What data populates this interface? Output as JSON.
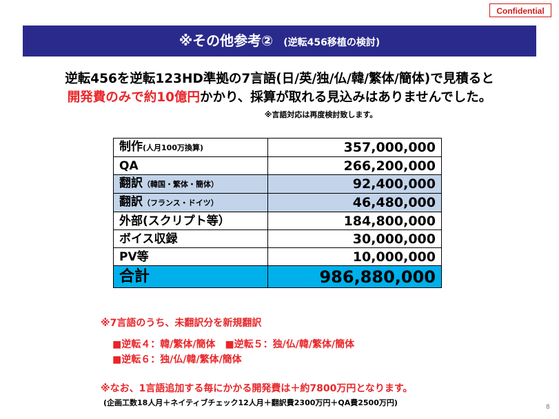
{
  "badge": "Confidential",
  "title": {
    "main": "※その他参考②",
    "sub": "(逆転456移植の検討)"
  },
  "headline": {
    "line1": "逆転456を逆転123HD準拠の7言語(日/英/独/仏/韓/繁体/簡体)で見積ると",
    "line2_red": "開発費のみで約10億円",
    "line2_rest": "かかり、採算が取れる見込みはありませんでした。",
    "line3": "※言語対応は再度検討致します。"
  },
  "cost_table": [
    {
      "label": "制作",
      "label_small": "(人月100万換算)",
      "value": "357,000,000",
      "style": "white"
    },
    {
      "label": "QA",
      "label_small": "",
      "value": "266,200,000",
      "style": "white"
    },
    {
      "label": "翻訳",
      "label_small": "（韓国・繁体・簡体）",
      "value": "92,400,000",
      "style": "blue"
    },
    {
      "label": "翻訳",
      "label_small": "（フランス・ドイツ）",
      "value": "46,480,000",
      "style": "blue"
    },
    {
      "label": "外部(スクリプト等）",
      "label_small": "",
      "value": "184,800,000",
      "style": "white"
    },
    {
      "label": "ボイス収録",
      "label_small": "",
      "value": "30,000,000",
      "style": "white"
    },
    {
      "label": "PV等",
      "label_small": "",
      "value": "10,000,000",
      "style": "white"
    },
    {
      "label": "合計",
      "label_small": "",
      "value": "986,880,000",
      "style": "total"
    }
  ],
  "notes": {
    "n1": "※7言語のうち、未翻訳分を新規翻訳",
    "n2": "■逆転４：韓/繁体/簡体　■逆転５：独/仏/韓/繁体/簡体",
    "n3": "■逆転６：独/仏/韓/繁体/簡体",
    "n4": "※なお、1言語追加する毎にかかる開発費は＋約7800万円となります。",
    "n5": "(企画工数18人月＋ネイティブチェック12人月＋翻訳費2300万円＋QA費2500万円)"
  },
  "page_number": "8"
}
